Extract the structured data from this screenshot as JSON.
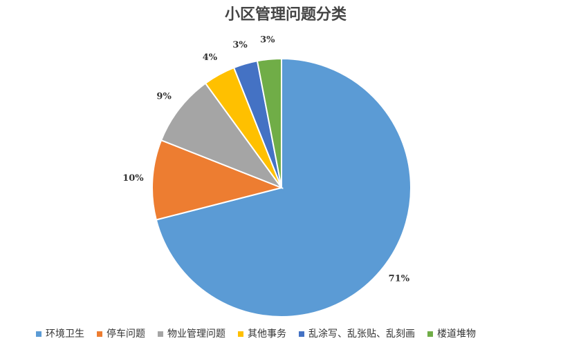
{
  "chart_data": {
    "type": "pie",
    "title": "小区管理问题分类",
    "categories": [
      "环境卫生",
      "停车问题",
      "物业管理问题",
      "其他事务",
      "乱涂写、乱张贴、乱刻画",
      "楼道堆物"
    ],
    "values": [
      71,
      10,
      9,
      4,
      3,
      3
    ],
    "value_labels": [
      "71%",
      "10%",
      "9%",
      "4%",
      "3%",
      "3%"
    ],
    "colors": [
      "#5b9bd5",
      "#ed7d31",
      "#a5a5a5",
      "#ffc000",
      "#4472c4",
      "#70ad47"
    ],
    "legend": "bottom"
  }
}
